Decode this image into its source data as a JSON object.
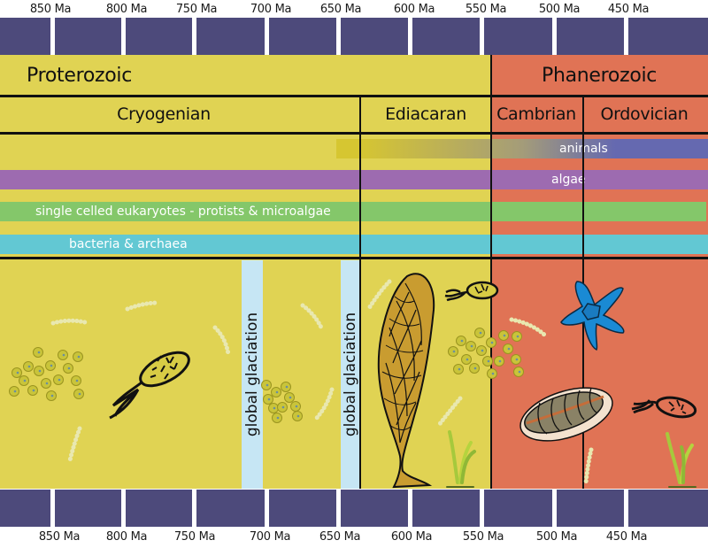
{
  "timescale": {
    "unit": "Ma",
    "top_ticks": [
      "850 Ma",
      "800 Ma",
      "750 Ma",
      "700 Ma",
      "650 Ma",
      "600 Ma",
      "550 Ma",
      "500 Ma",
      "450 Ma"
    ],
    "bottom_ticks": [
      "850 Ma",
      "800 Ma",
      "750 Ma",
      "700 Ma",
      "650 Ma",
      "600 Ma",
      "550 Ma",
      "500 Ma",
      "450 Ma"
    ]
  },
  "eras": [
    {
      "label": "Proterozoic",
      "color": "#e0d353"
    },
    {
      "label": "Phanerozoic",
      "color": "#e07355"
    }
  ],
  "periods": [
    {
      "label": "Cryogenian"
    },
    {
      "label": "Ediacaran"
    },
    {
      "label": "Cambrian"
    },
    {
      "label": "Ordovician"
    }
  ],
  "life_ranges": [
    {
      "label": "animals",
      "color": "#6569b0"
    },
    {
      "label": "algae",
      "color": "#9d6bb0"
    },
    {
      "label": "single celled eukaryotes - protists & microalgae",
      "color": "#84c76a"
    },
    {
      "label": "bacteria & archaea",
      "color": "#62c8d3"
    }
  ],
  "events": [
    {
      "label": "global glaciation"
    },
    {
      "label": "global glaciation"
    }
  ],
  "illustrations": [
    "cyanobacteria-filaments",
    "green-algae-cells",
    "flagellated-protist",
    "rangeomorph-frond",
    "seaweed",
    "starfish",
    "trilobite-like-animal"
  ],
  "colors": {
    "scale_band": "#4d4a7b",
    "glaciation": "#c6e6f4"
  }
}
